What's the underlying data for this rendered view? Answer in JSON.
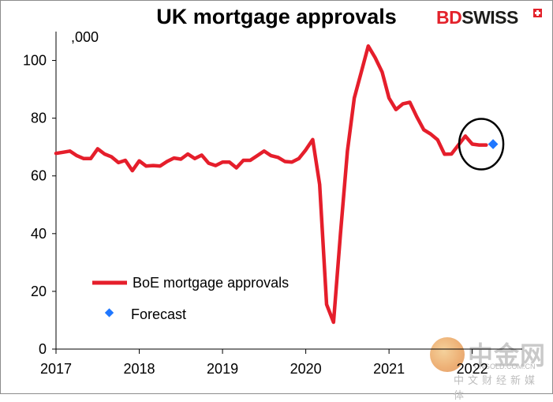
{
  "title": "UK mortgage approvals",
  "brand": {
    "prefix": "BD",
    "suffix": "SWISS"
  },
  "watermark": {
    "chinese_name": "中金网",
    "url": "CNGOLD.COM.CN",
    "tagline": "中文财经新媒体"
  },
  "colors": {
    "series": "#e51e2b",
    "forecast": "#1f77ff",
    "axis": "#000000"
  },
  "chart_data": {
    "type": "line",
    "ylabel_unit": ",000",
    "ylim": [
      0,
      110
    ],
    "yticks": [
      0,
      20,
      40,
      60,
      80,
      100
    ],
    "xlim": [
      2017.0,
      2022.6
    ],
    "xticks": [
      2017,
      2018,
      2019,
      2020,
      2021,
      2022
    ],
    "xtick_labels": [
      "2017",
      "2018",
      "2019",
      "2020",
      "2021",
      "2022"
    ],
    "legend_placement": "lower-left",
    "grid": false,
    "series": [
      {
        "name": "BoE mortgage approvals",
        "x": [
          2017.0,
          2017.083,
          2017.167,
          2017.25,
          2017.333,
          2017.417,
          2017.5,
          2017.583,
          2017.667,
          2017.75,
          2017.833,
          2017.917,
          2018.0,
          2018.083,
          2018.167,
          2018.25,
          2018.333,
          2018.417,
          2018.5,
          2018.583,
          2018.667,
          2018.75,
          2018.833,
          2018.917,
          2019.0,
          2019.083,
          2019.167,
          2019.25,
          2019.333,
          2019.417,
          2019.5,
          2019.583,
          2019.667,
          2019.75,
          2019.833,
          2019.917,
          2020.0,
          2020.083,
          2020.167,
          2020.25,
          2020.333,
          2020.417,
          2020.5,
          2020.583,
          2020.667,
          2020.75,
          2020.833,
          2020.917,
          2021.0,
          2021.083,
          2021.167,
          2021.25,
          2021.333,
          2021.417,
          2021.5,
          2021.583,
          2021.667,
          2021.75,
          2021.833,
          2021.917,
          2022.0,
          2022.083,
          2022.167
        ],
        "values": [
          67.8,
          68.2,
          68.6,
          67.0,
          66.0,
          66.0,
          69.4,
          67.6,
          66.6,
          64.6,
          65.4,
          61.8,
          65.2,
          63.4,
          63.6,
          63.4,
          65.0,
          66.2,
          65.8,
          67.6,
          66.0,
          67.2,
          64.4,
          63.6,
          64.8,
          64.8,
          62.8,
          65.4,
          65.4,
          67.0,
          68.6,
          67.0,
          66.4,
          65.0,
          64.8,
          66.0,
          69.0,
          72.6,
          57.0,
          15.5,
          9.3,
          40.0,
          68.6,
          87.0,
          96.0,
          105.0,
          101.0,
          96.0,
          87.0,
          83.0,
          85.0,
          85.5,
          80.5,
          76.0,
          74.5,
          72.5,
          67.5,
          67.6,
          70.7,
          73.8,
          71.0,
          70.7,
          70.7
        ]
      },
      {
        "name": "Forecast",
        "x": [
          2022.25
        ],
        "values": [
          71.0
        ]
      }
    ]
  }
}
